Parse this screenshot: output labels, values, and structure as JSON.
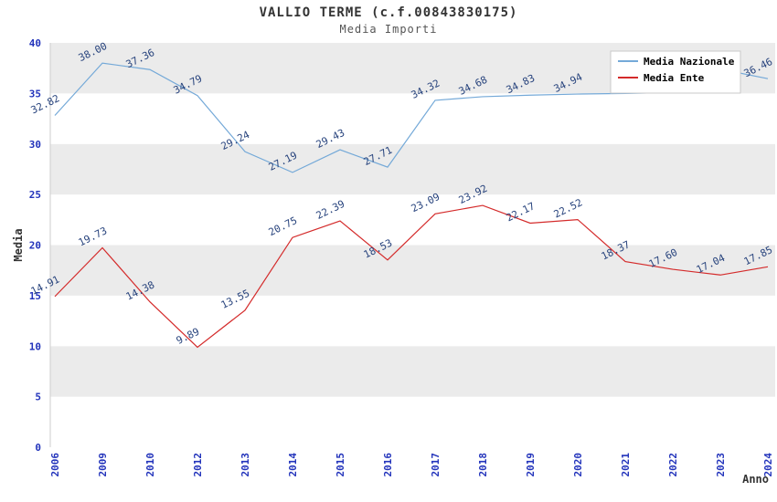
{
  "chart_data": {
    "type": "line",
    "title": "VALLIO TERME (c.f.00843830175)",
    "subtitle": "Media Importi",
    "xlabel": "Anno",
    "ylabel": "Media",
    "ylim": [
      0,
      40
    ],
    "yticks": [
      0,
      5,
      10,
      15,
      20,
      25,
      30,
      35,
      40
    ],
    "categories": [
      "2006",
      "2009",
      "2010",
      "2012",
      "2013",
      "2014",
      "2015",
      "2016",
      "2017",
      "2018",
      "2019",
      "2020",
      "2021",
      "2022",
      "2023",
      "2024"
    ],
    "grid": "horizontal-alternating-bands",
    "legend_position": "top-right",
    "series": [
      {
        "name": "Media Nazionale",
        "color": "#74a9d8",
        "values": [
          32.82,
          38.0,
          37.36,
          34.79,
          29.24,
          27.19,
          29.43,
          27.71,
          34.32,
          34.68,
          34.83,
          34.94,
          35.0,
          35.1,
          37.4,
          36.46
        ],
        "labels": [
          "32.82",
          "38.00",
          "37.36",
          "34.79",
          "29.24",
          "27.19",
          "29.43",
          "27.71",
          "34.32",
          "34.68",
          "34.83",
          "34.94",
          "",
          "",
          "",
          "36.46"
        ]
      },
      {
        "name": "Media Ente",
        "color": "#d42a2a",
        "values": [
          14.91,
          19.73,
          14.38,
          9.89,
          13.55,
          20.75,
          22.39,
          18.53,
          23.09,
          23.92,
          22.17,
          22.52,
          18.37,
          17.6,
          17.04,
          17.85
        ],
        "labels": [
          "14.91",
          "19.73",
          "14.38",
          "9.89",
          "13.55",
          "20.75",
          "22.39",
          "18.53",
          "23.09",
          "23.92",
          "22.17",
          "22.52",
          "18.37",
          "17.60",
          "17.04",
          "17.85"
        ]
      }
    ],
    "colors": {
      "band": "#ebebeb",
      "axis": "#cccccc",
      "tick_label": "#2233bb",
      "point_label": "#26427c",
      "legend_border": "#c8c8c8",
      "title": "#333333",
      "subtitle": "#555555"
    }
  }
}
